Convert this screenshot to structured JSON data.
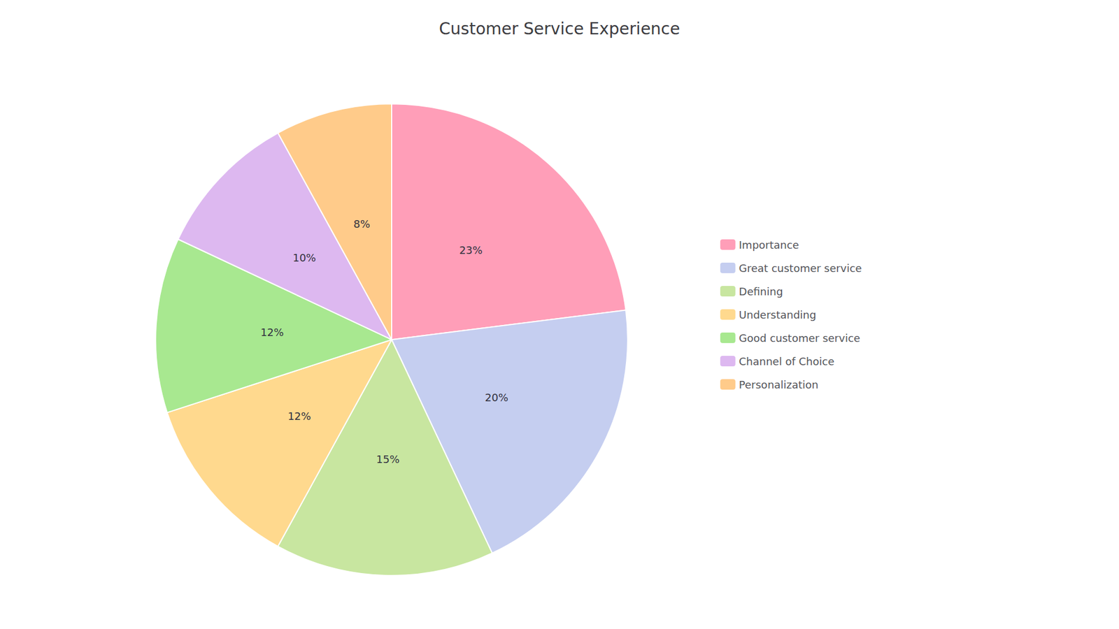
{
  "chart_data": {
    "type": "pie",
    "title": "Customer Service Experience",
    "categories": [
      "Importance",
      "Great customer service",
      "Defining",
      "Understanding",
      "Good customer service",
      "Channel of Choice",
      "Personalization"
    ],
    "values": [
      23,
      20,
      15,
      12,
      12,
      10,
      8
    ],
    "value_labels": [
      "23%",
      "20%",
      "15%",
      "12%",
      "12%",
      "10%",
      "8%"
    ],
    "colors": [
      "#FF9EB8",
      "#C5CEF0",
      "#C8E6A0",
      "#FFD98E",
      "#A8E890",
      "#DDB8F0",
      "#FFCB8A"
    ],
    "data_labels": true,
    "legend": "right"
  }
}
